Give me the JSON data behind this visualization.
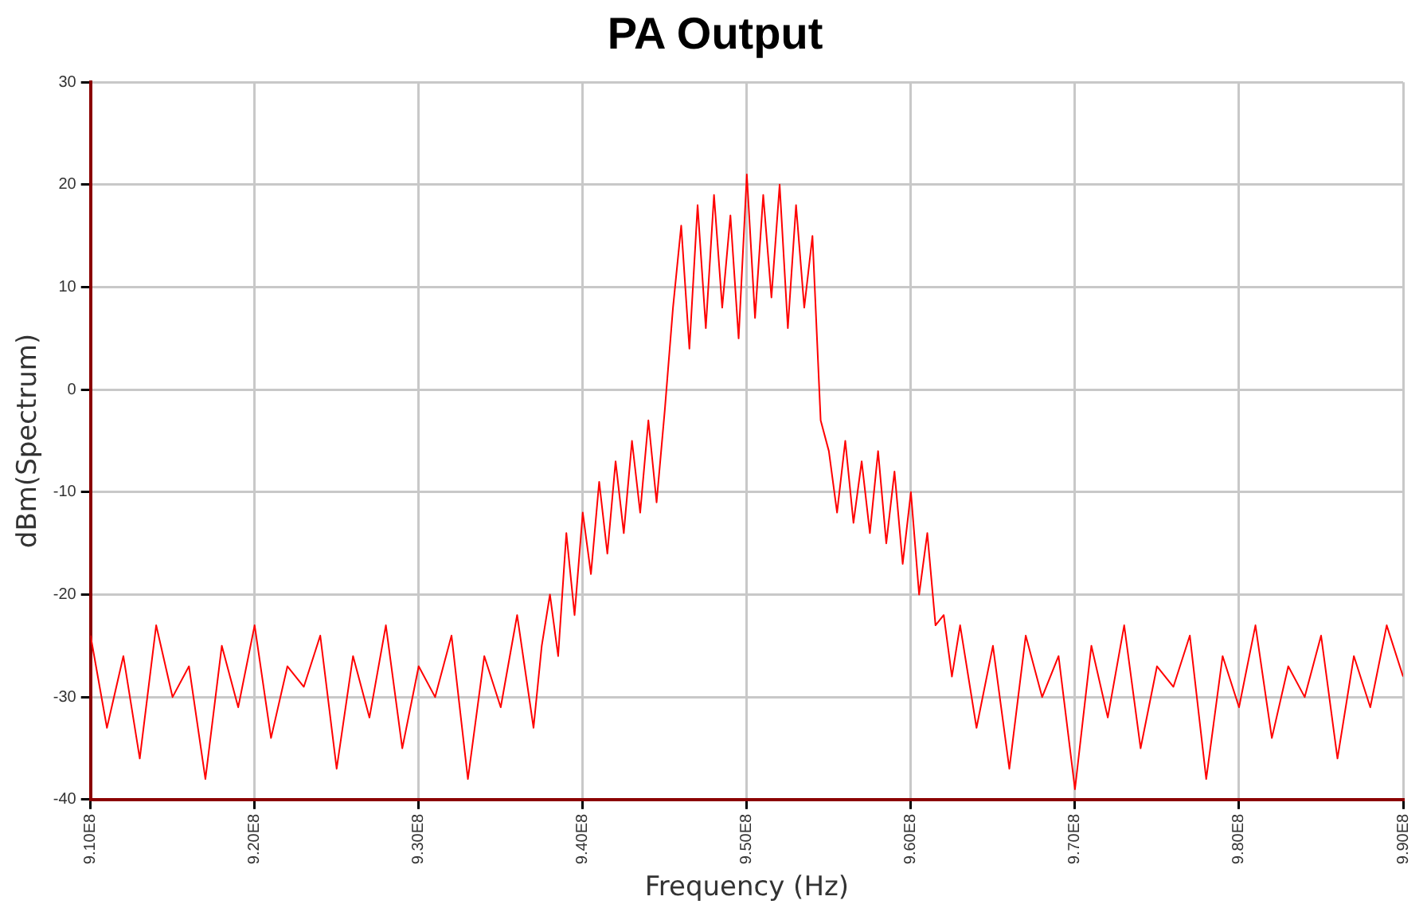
{
  "chart_data": {
    "type": "line",
    "title": "PA Output",
    "xlabel": "Frequency (Hz)",
    "ylabel": "dBm(Spectrum)",
    "xlim": [
      910000000,
      990000000
    ],
    "xticks": [
      {
        "value": 910000000,
        "label": "9.10E8"
      },
      {
        "value": 920000000,
        "label": "9.20E8"
      },
      {
        "value": 930000000,
        "label": "9.30E8"
      },
      {
        "value": 940000000,
        "label": "9.40E8"
      },
      {
        "value": 950000000,
        "label": "9.50E8"
      },
      {
        "value": 960000000,
        "label": "9.60E8"
      },
      {
        "value": 970000000,
        "label": "9.70E8"
      },
      {
        "value": 980000000,
        "label": "9.80E8"
      },
      {
        "value": 990000000,
        "label": "9.90E8"
      }
    ],
    "ylim": [
      -40,
      30
    ],
    "yticks": [
      -40,
      -30,
      -20,
      -10,
      0,
      10,
      20,
      30
    ],
    "grid": true,
    "marker": "none",
    "line_style": "solid",
    "series": [
      {
        "color": "#ff0000",
        "x": [
          910000000,
          911000000,
          912000000,
          913000000,
          914000000,
          915000000,
          916000000,
          917000000,
          918000000,
          919000000,
          920000000,
          921000000,
          922000000,
          923000000,
          924000000,
          925000000,
          926000000,
          927000000,
          928000000,
          929000000,
          930000000,
          931000000,
          932000000,
          933000000,
          934000000,
          935000000,
          936000000,
          937000000,
          937500000,
          938000000,
          938500000,
          939000000,
          939500000,
          940000000,
          940500000,
          941000000,
          941500000,
          942000000,
          942500000,
          943000000,
          943500000,
          944000000,
          944500000,
          945000000,
          945500000,
          946000000,
          946500000,
          947000000,
          947500000,
          948000000,
          948500000,
          949000000,
          949500000,
          950000000,
          950500000,
          951000000,
          951500000,
          952000000,
          952500000,
          953000000,
          953500000,
          954000000,
          954500000,
          955000000,
          955500000,
          956000000,
          956500000,
          957000000,
          957500000,
          958000000,
          958500000,
          959000000,
          959500000,
          960000000,
          960500000,
          961000000,
          961500000,
          962000000,
          962500000,
          963000000,
          964000000,
          965000000,
          966000000,
          967000000,
          968000000,
          969000000,
          970000000,
          971000000,
          972000000,
          973000000,
          974000000,
          975000000,
          976000000,
          977000000,
          978000000,
          979000000,
          980000000,
          981000000,
          982000000,
          983000000,
          984000000,
          985000000,
          986000000,
          987000000,
          988000000,
          989000000,
          990000000
        ],
        "values": [
          -24,
          -33,
          -26,
          -36,
          -23,
          -30,
          -27,
          -38,
          -25,
          -31,
          -23,
          -34,
          -27,
          -29,
          -24,
          -37,
          -26,
          -32,
          -23,
          -35,
          -27,
          -30,
          -24,
          -38,
          -26,
          -31,
          -22,
          -33,
          -25,
          -20,
          -26,
          -14,
          -22,
          -12,
          -18,
          -9,
          -16,
          -7,
          -14,
          -5,
          -12,
          -3,
          -11,
          -2,
          8,
          16,
          4,
          18,
          6,
          19,
          8,
          17,
          5,
          21,
          7,
          19,
          9,
          20,
          6,
          18,
          8,
          15,
          -3,
          -6,
          -12,
          -5,
          -13,
          -7,
          -14,
          -6,
          -15,
          -8,
          -17,
          -10,
          -20,
          -14,
          -23,
          -22,
          -28,
          -23,
          -33,
          -25,
          -37,
          -24,
          -30,
          -26,
          -39,
          -25,
          -32,
          -23,
          -35,
          -27,
          -29,
          -24,
          -38,
          -26,
          -31,
          -23,
          -34,
          -27,
          -30,
          -24,
          -36,
          -26,
          -31,
          -23,
          -28
        ]
      }
    ]
  }
}
